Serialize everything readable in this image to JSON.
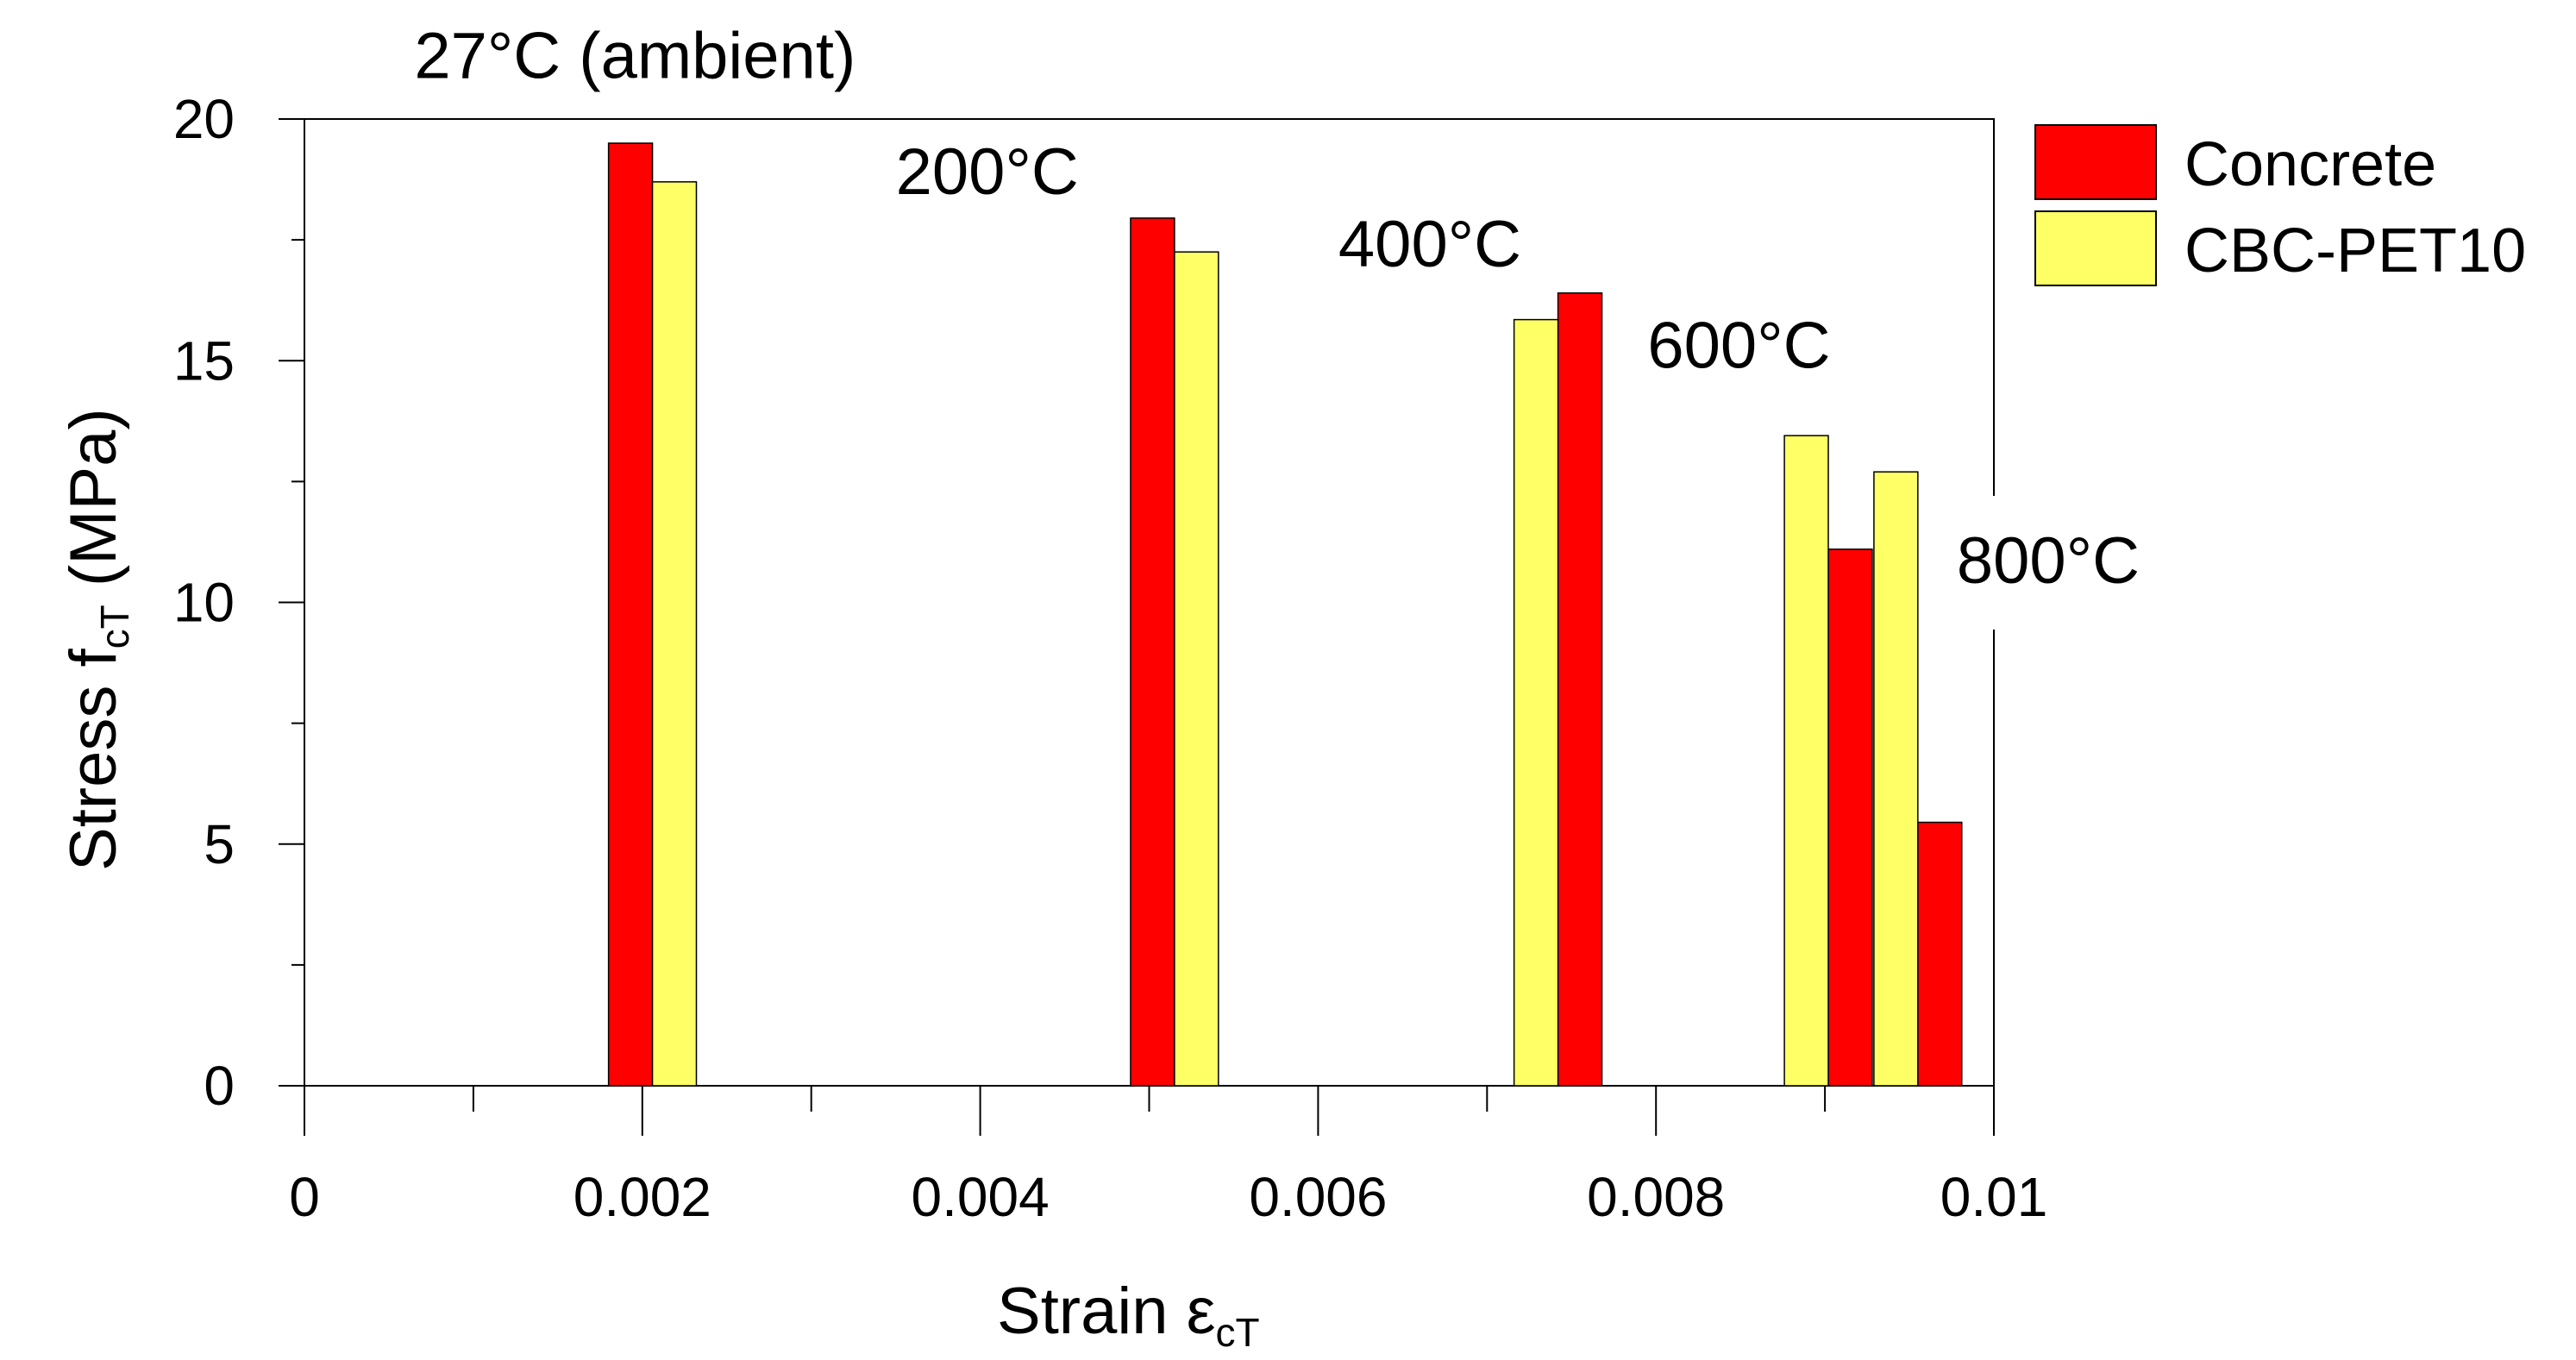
{
  "chart_data": {
    "type": "bar",
    "title": "",
    "xlabel": {
      "main": "Strain ",
      "symbol": "ε",
      "sub": "cT"
    },
    "ylabel": {
      "main": "Stress f",
      "sub": "cT",
      "unit": "  (MPa)"
    },
    "xlim": [
      0,
      0.01
    ],
    "ylim": [
      0,
      20
    ],
    "x_ticks": [
      0,
      0.002,
      0.004,
      0.006,
      0.008,
      0.01
    ],
    "x_tick_labels": [
      "0",
      "0.002",
      "0.004",
      "0.006",
      "0.008",
      "0.01"
    ],
    "x_minor_ticks": [
      0.001,
      0.003,
      0.005,
      0.007,
      0.009
    ],
    "y_ticks": [
      0,
      5,
      10,
      15,
      20
    ],
    "y_tick_labels": [
      "0",
      "5",
      "10",
      "15",
      "20"
    ],
    "y_minor_ticks": [
      2.5,
      7.5,
      12.5,
      17.5
    ],
    "grid": false,
    "legend_position": "right",
    "bar_width": 0.00026,
    "series": [
      {
        "name": "Concrete",
        "color": "#ff0000",
        "points": [
          {
            "x": 0.00193,
            "y": 19.5
          },
          {
            "x": 0.00502,
            "y": 17.95
          },
          {
            "x": 0.00755,
            "y": 16.4
          },
          {
            "x": 0.00915,
            "y": 11.1
          },
          {
            "x": 0.00968,
            "y": 5.45
          }
        ]
      },
      {
        "name": "CBC-PET10",
        "color": "#ffff66",
        "points": [
          {
            "x": 0.00219,
            "y": 18.7
          },
          {
            "x": 0.00528,
            "y": 17.25
          },
          {
            "x": 0.00729,
            "y": 15.85
          },
          {
            "x": 0.00889,
            "y": 13.45
          },
          {
            "x": 0.00942,
            "y": 12.7
          }
        ]
      }
    ],
    "annotations": [
      {
        "text": "27°C (ambient)",
        "x": 0.00065,
        "y": 20.85
      },
      {
        "text": "200°C",
        "x": 0.0035,
        "y": 18.45
      },
      {
        "text": "400°C",
        "x": 0.00612,
        "y": 16.95
      },
      {
        "text": "600°C",
        "x": 0.00795,
        "y": 14.85
      },
      {
        "text": "800°C",
        "x": 0.00978,
        "y": 10.4
      }
    ]
  }
}
